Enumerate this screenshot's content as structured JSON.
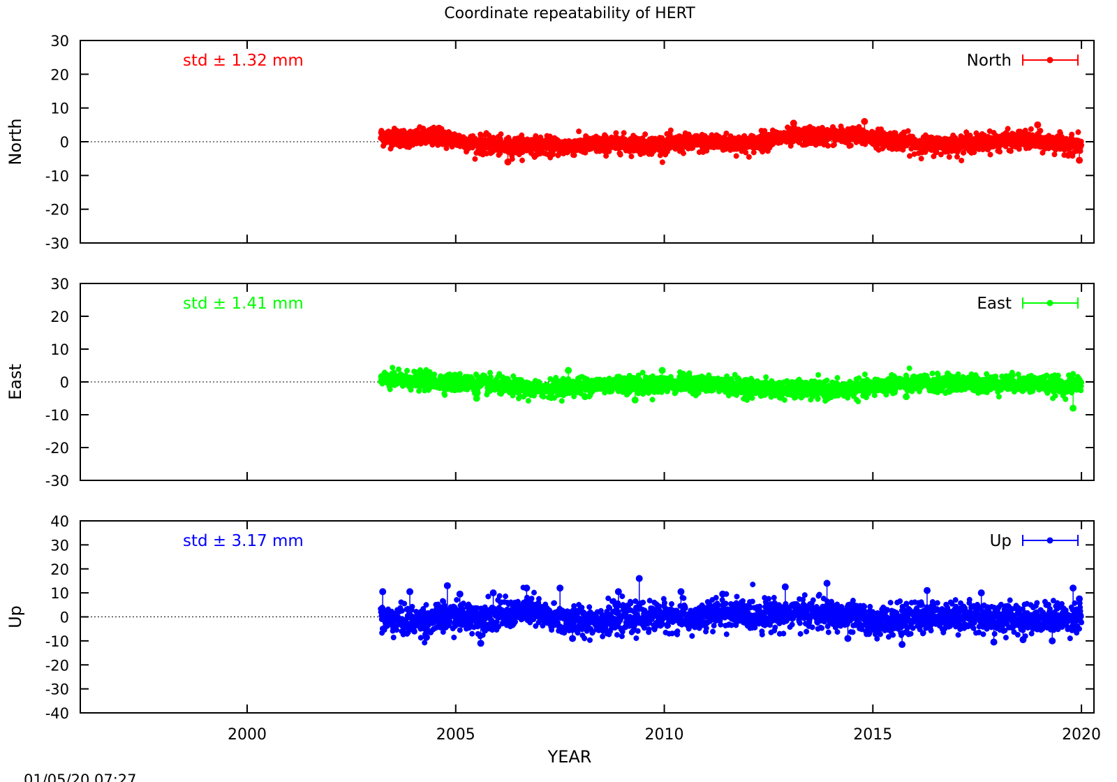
{
  "chart_data": {
    "type": "scatter",
    "title": "Coordinate repeatability of HERT",
    "xlabel": "YEAR",
    "xlim": [
      1996,
      2020.3
    ],
    "xticks": [
      2000,
      2005,
      2010,
      2015,
      2020
    ],
    "timestamp": "01/05/20 07:27",
    "panels": [
      {
        "name": "North",
        "ylabel": "North",
        "color": "#ff0000",
        "std_label": "std ± 1.32 mm",
        "legend": "North",
        "ylim": [
          -30,
          30
        ],
        "yticks": [
          30,
          20,
          10,
          0,
          -10,
          -20,
          -30
        ],
        "x_start": 2003.2,
        "x_end": 2020.0,
        "trend": [
          [
            2003.2,
            1.5
          ],
          [
            2004.0,
            1.0
          ],
          [
            2004.6,
            1.5
          ],
          [
            2005.4,
            -0.5
          ],
          [
            2006.2,
            -1.5
          ],
          [
            2006.7,
            -1.0
          ],
          [
            2007.5,
            -1.5
          ],
          [
            2008.2,
            -1.0
          ],
          [
            2009.0,
            -0.5
          ],
          [
            2009.7,
            -1.0
          ],
          [
            2010.5,
            -0.5
          ],
          [
            2011.4,
            -0.2
          ],
          [
            2012.0,
            -0.8
          ],
          [
            2012.6,
            1.0
          ],
          [
            2013.4,
            1.5
          ],
          [
            2014.2,
            1.8
          ],
          [
            2014.9,
            1.3
          ],
          [
            2015.5,
            0.5
          ],
          [
            2016.2,
            -1.0
          ],
          [
            2017.0,
            -0.8
          ],
          [
            2017.8,
            0.0
          ],
          [
            2018.6,
            0.5
          ],
          [
            2019.3,
            -0.5
          ],
          [
            2020.0,
            -1.0
          ]
        ],
        "noise": 1.3,
        "outliers": [
          [
            2006.25,
            -6.0
          ],
          [
            2019.95,
            -5.5
          ],
          [
            2013.1,
            5.5
          ],
          [
            2014.8,
            6.0
          ],
          [
            2018.95,
            5.0
          ],
          [
            2004.6,
            4.0
          ]
        ]
      },
      {
        "name": "East",
        "ylabel": "East",
        "color": "#00ff00",
        "std_label": "std ± 1.41 mm",
        "legend": "East",
        "ylim": [
          -30,
          30
        ],
        "yticks": [
          30,
          20,
          10,
          0,
          -10,
          -20,
          -30
        ],
        "x_start": 2003.2,
        "x_end": 2020.0,
        "trend": [
          [
            2003.2,
            0.5
          ],
          [
            2004.0,
            0.5
          ],
          [
            2004.6,
            0.0
          ],
          [
            2005.5,
            -0.5
          ],
          [
            2006.3,
            -1.5
          ],
          [
            2006.8,
            -2.5
          ],
          [
            2007.5,
            -1.5
          ],
          [
            2008.3,
            -1.0
          ],
          [
            2009.0,
            -0.5
          ],
          [
            2009.7,
            -1.0
          ],
          [
            2010.5,
            -0.5
          ],
          [
            2011.5,
            -1.0
          ],
          [
            2012.3,
            -2.0
          ],
          [
            2013.2,
            -2.5
          ],
          [
            2014.0,
            -2.5
          ],
          [
            2014.8,
            -2.0
          ],
          [
            2015.5,
            -0.5
          ],
          [
            2016.5,
            -0.5
          ],
          [
            2017.5,
            -0.5
          ],
          [
            2018.2,
            -0.5
          ],
          [
            2019.0,
            -0.5
          ],
          [
            2019.6,
            -1.5
          ],
          [
            2020.0,
            0.0
          ]
        ],
        "noise": 1.3,
        "outliers": [
          [
            2019.8,
            -8.0
          ],
          [
            2005.5,
            -5.0
          ],
          [
            2008.1,
            -4.5
          ],
          [
            2009.3,
            -5.5
          ],
          [
            2015.8,
            -4.5
          ],
          [
            2007.7,
            3.5
          ],
          [
            2009.95,
            3.5
          ]
        ]
      },
      {
        "name": "Up",
        "ylabel": "Up",
        "color": "#0000ff",
        "std_label": "std ± 3.17 mm",
        "legend": "Up",
        "ylim": [
          -40,
          40
        ],
        "yticks": [
          40,
          30,
          20,
          10,
          0,
          -10,
          -20,
          -30,
          -40
        ],
        "x_start": 2003.2,
        "x_end": 2020.0,
        "trend": [
          [
            2003.2,
            -1.0
          ],
          [
            2004.0,
            -2.0
          ],
          [
            2004.8,
            0.0
          ],
          [
            2005.6,
            0.0
          ],
          [
            2006.4,
            1.5
          ],
          [
            2006.8,
            3.0
          ],
          [
            2007.3,
            -1.0
          ],
          [
            2008.2,
            -1.5
          ],
          [
            2009.0,
            -1.0
          ],
          [
            2010.0,
            0.5
          ],
          [
            2010.8,
            -1.0
          ],
          [
            2011.4,
            2.0
          ],
          [
            2012.2,
            0.5
          ],
          [
            2013.0,
            1.5
          ],
          [
            2013.8,
            1.0
          ],
          [
            2014.5,
            0.0
          ],
          [
            2015.0,
            -2.0
          ],
          [
            2015.8,
            -1.0
          ],
          [
            2016.5,
            0.5
          ],
          [
            2017.3,
            0.0
          ],
          [
            2018.2,
            -0.5
          ],
          [
            2019.0,
            -0.5
          ],
          [
            2020.0,
            0.0
          ]
        ],
        "noise": 3.0,
        "outliers": [
          [
            2003.25,
            10.5
          ],
          [
            2003.9,
            10.5
          ],
          [
            2004.3,
            -8.5
          ],
          [
            2004.8,
            13.0
          ],
          [
            2005.1,
            9.5
          ],
          [
            2005.6,
            -11.0
          ],
          [
            2005.9,
            10.0
          ],
          [
            2006.7,
            12.0
          ],
          [
            2007.5,
            12.0
          ],
          [
            2007.8,
            -9.0
          ],
          [
            2008.9,
            10.5
          ],
          [
            2009.4,
            16.0
          ],
          [
            2010.4,
            10.5
          ],
          [
            2011.4,
            9.5
          ],
          [
            2012.9,
            12.5
          ],
          [
            2013.9,
            14.0
          ],
          [
            2014.4,
            -9.0
          ],
          [
            2015.7,
            -11.5
          ],
          [
            2016.3,
            11.0
          ],
          [
            2017.6,
            10.0
          ],
          [
            2017.9,
            -10.5
          ],
          [
            2018.6,
            -9.5
          ],
          [
            2019.3,
            -10.0
          ],
          [
            2019.8,
            12.0
          ],
          [
            2019.95,
            7.5
          ]
        ]
      }
    ]
  }
}
